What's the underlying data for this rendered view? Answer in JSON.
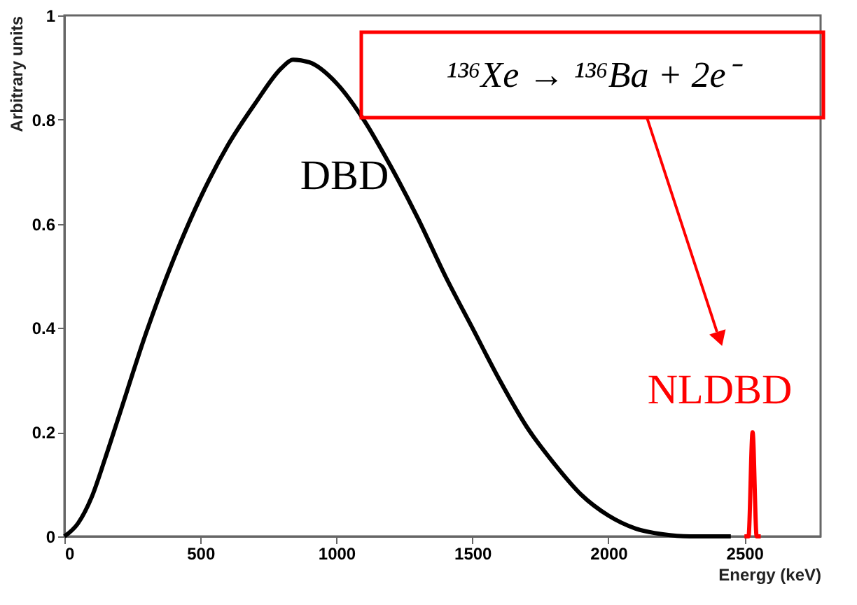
{
  "chart_data": {
    "type": "line",
    "xlabel": "Energy (keV)",
    "ylabel": "Arbitrary units",
    "xlim": [
      0,
      2780
    ],
    "xticks": [
      0,
      500,
      1000,
      1500,
      2000,
      2500
    ],
    "ylim": [
      0,
      1
    ],
    "yticks": [
      0,
      0.2,
      0.4,
      0.6,
      0.8,
      1
    ],
    "grid": false,
    "marker": "none",
    "line_style": "solid",
    "series": [
      {
        "color": "#000000",
        "x": [
          0,
          50,
          100,
          150,
          200,
          300,
          400,
          500,
          600,
          700,
          800,
          840,
          900,
          1000,
          1100,
          1200,
          1300,
          1400,
          1500,
          1600,
          1700,
          1800,
          1900,
          2000,
          2100,
          2200,
          2300,
          2450
        ],
        "values": [
          0,
          0.025,
          0.075,
          0.15,
          0.23,
          0.39,
          0.53,
          0.65,
          0.75,
          0.83,
          0.9,
          0.915,
          0.91,
          0.87,
          0.8,
          0.71,
          0.61,
          0.5,
          0.4,
          0.3,
          0.21,
          0.14,
          0.08,
          0.04,
          0.015,
          0.004,
          0,
          0
        ]
      },
      {
        "color": "#ff0000",
        "x": [
          2500,
          2515,
          2530,
          2545,
          2560
        ],
        "values": [
          0,
          0,
          0.2,
          0,
          0
        ]
      }
    ],
    "annotations": [
      "DBD",
      "NLDBD",
      "¹³⁶Xe → ¹³⁶Ba + 2e⁻"
    ]
  }
}
